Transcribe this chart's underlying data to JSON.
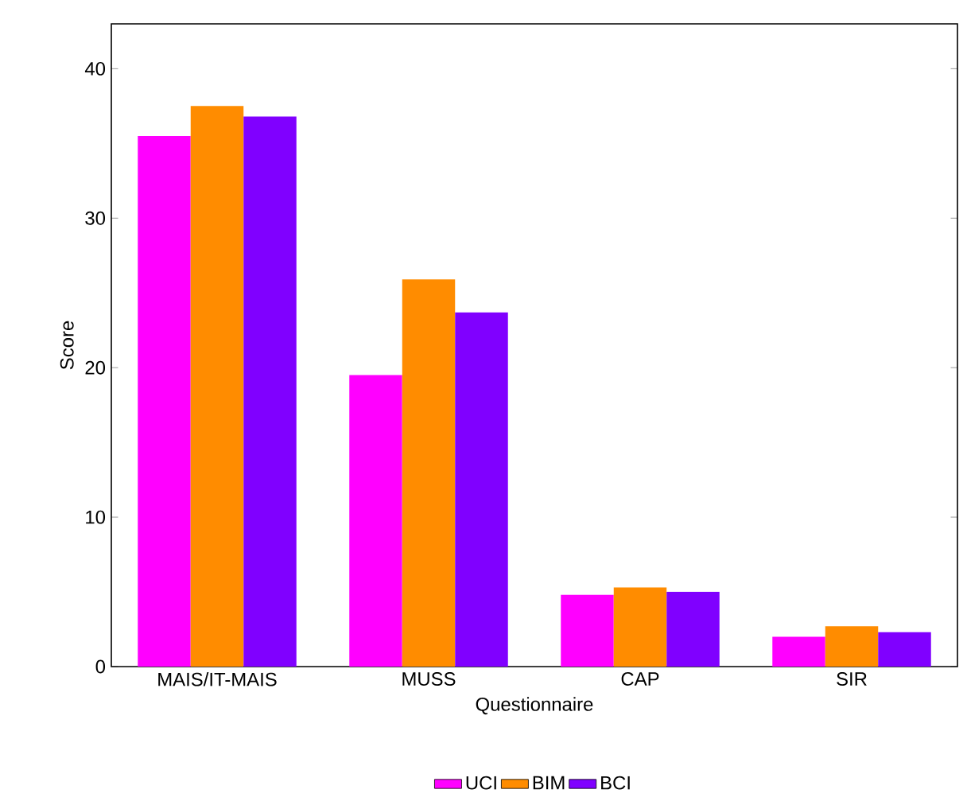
{
  "chart_data": {
    "type": "bar",
    "xlabel": "Questionnaire",
    "ylabel": "Score",
    "categories": [
      "MAIS/IT-MAIS",
      "MUSS",
      "CAP",
      "SIR"
    ],
    "series": [
      {
        "name": "UCI",
        "color": "#ff00ff",
        "values": [
          35.5,
          19.5,
          4.8,
          2.0
        ]
      },
      {
        "name": "BIM",
        "color": "#ff8c00",
        "values": [
          37.5,
          25.9,
          5.3,
          2.7
        ]
      },
      {
        "name": "BCI",
        "color": "#8000ff",
        "values": [
          36.8,
          23.7,
          5.0,
          2.3
        ]
      }
    ],
    "ylim": [
      0,
      43
    ],
    "yticks": [
      0,
      10,
      20,
      30,
      40
    ],
    "grid": false,
    "legend": "bottom"
  }
}
